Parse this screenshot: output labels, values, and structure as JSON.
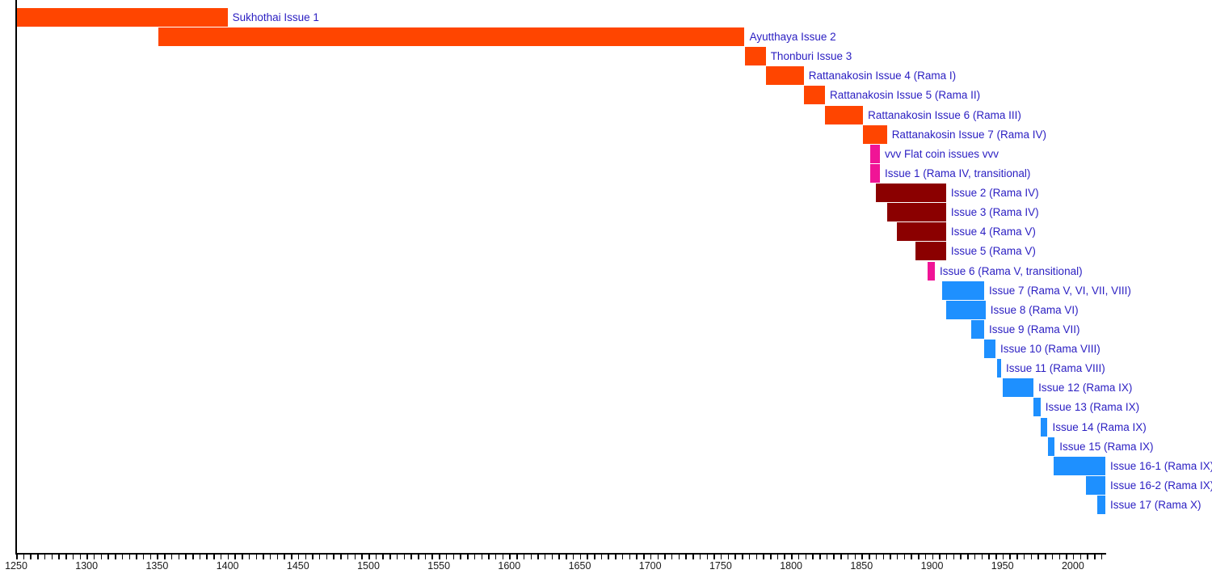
{
  "chart_data": {
    "type": "bar",
    "variant": "timeline-gantt",
    "title": "",
    "xlabel": "",
    "ylabel": "",
    "grid": false,
    "legend": "none",
    "x_axis": {
      "min": 1250,
      "max": 2023,
      "tick_start": 1250,
      "tick_end": 2020,
      "minor_step": 5,
      "label_step": 50,
      "tick_labels": [
        "1250",
        "1300",
        "1350",
        "1400",
        "1450",
        "1500",
        "1550",
        "1600",
        "1650",
        "1700",
        "1750",
        "1800",
        "1850",
        "1900",
        "1950",
        "2000"
      ]
    },
    "colors": {
      "period": "#FF4500",
      "transitional": "#F01496",
      "early_flat": "#8B0000",
      "modern": "#1E90FF",
      "bar_label_text": "#2A1EC2",
      "axis": "#000000"
    },
    "bars": [
      {
        "label": "Sukhothai Issue 1",
        "start": 1250,
        "end": 1400,
        "group": "period"
      },
      {
        "label": "Ayutthaya Issue 2",
        "start": 1351,
        "end": 1767,
        "group": "period"
      },
      {
        "label": "Thonburi Issue 3",
        "start": 1767,
        "end": 1782,
        "group": "period"
      },
      {
        "label": "Rattanakosin Issue 4 (Rama I)",
        "start": 1782,
        "end": 1809,
        "group": "period"
      },
      {
        "label": "Rattanakosin Issue 5 (Rama II)",
        "start": 1809,
        "end": 1824,
        "group": "period"
      },
      {
        "label": "Rattanakosin Issue 6 (Rama III)",
        "start": 1824,
        "end": 1851,
        "group": "period"
      },
      {
        "label": "Rattanakosin Issue 7 (Rama IV)",
        "start": 1851,
        "end": 1868,
        "group": "period"
      },
      {
        "label": "vvv Flat coin issues vvv",
        "start": 1856,
        "end": 1863,
        "group": "transitional"
      },
      {
        "label": "Issue 1 (Rama IV, transitional)",
        "start": 1856,
        "end": 1863,
        "group": "transitional"
      },
      {
        "label": "Issue 2 (Rama IV)",
        "start": 1860,
        "end": 1910,
        "group": "early_flat"
      },
      {
        "label": "Issue 3 (Rama IV)",
        "start": 1868,
        "end": 1910,
        "group": "early_flat"
      },
      {
        "label": "Issue 4 (Rama V)",
        "start": 1875,
        "end": 1910,
        "group": "early_flat"
      },
      {
        "label": "Issue 5 (Rama V)",
        "start": 1888,
        "end": 1910,
        "group": "early_flat"
      },
      {
        "label": "Issue 6 (Rama V, transitional)",
        "start": 1897,
        "end": 1902,
        "group": "transitional"
      },
      {
        "label": "Issue 7 (Rama V, VI, VII, VIII)",
        "start": 1907,
        "end": 1937,
        "group": "modern"
      },
      {
        "label": "Issue 8 (Rama VI)",
        "start": 1910,
        "end": 1938,
        "group": "modern"
      },
      {
        "label": "Issue 9 (Rama VII)",
        "start": 1928,
        "end": 1937,
        "group": "modern"
      },
      {
        "label": "Issue 10 (Rama VIII)",
        "start": 1937,
        "end": 1945,
        "group": "modern"
      },
      {
        "label": "Issue 11 (Rama VIII)",
        "start": 1946,
        "end": 1949,
        "group": "modern"
      },
      {
        "label": "Issue 12 (Rama IX)",
        "start": 1950,
        "end": 1972,
        "group": "modern"
      },
      {
        "label": "Issue 13 (Rama IX)",
        "start": 1972,
        "end": 1977,
        "group": "modern"
      },
      {
        "label": "Issue 14 (Rama IX)",
        "start": 1977,
        "end": 1982,
        "group": "modern"
      },
      {
        "label": "Issue 15 (Rama IX)",
        "start": 1982,
        "end": 1987,
        "group": "modern"
      },
      {
        "label": "Issue 16-1 (Rama IX)",
        "start": 1986,
        "end": 2023,
        "group": "modern"
      },
      {
        "label": "Issue 16-2 (Rama IX)",
        "start": 2009,
        "end": 2023,
        "group": "modern"
      },
      {
        "label": "Issue 17 (Rama X)",
        "start": 2017,
        "end": 2023,
        "group": "modern"
      }
    ]
  }
}
